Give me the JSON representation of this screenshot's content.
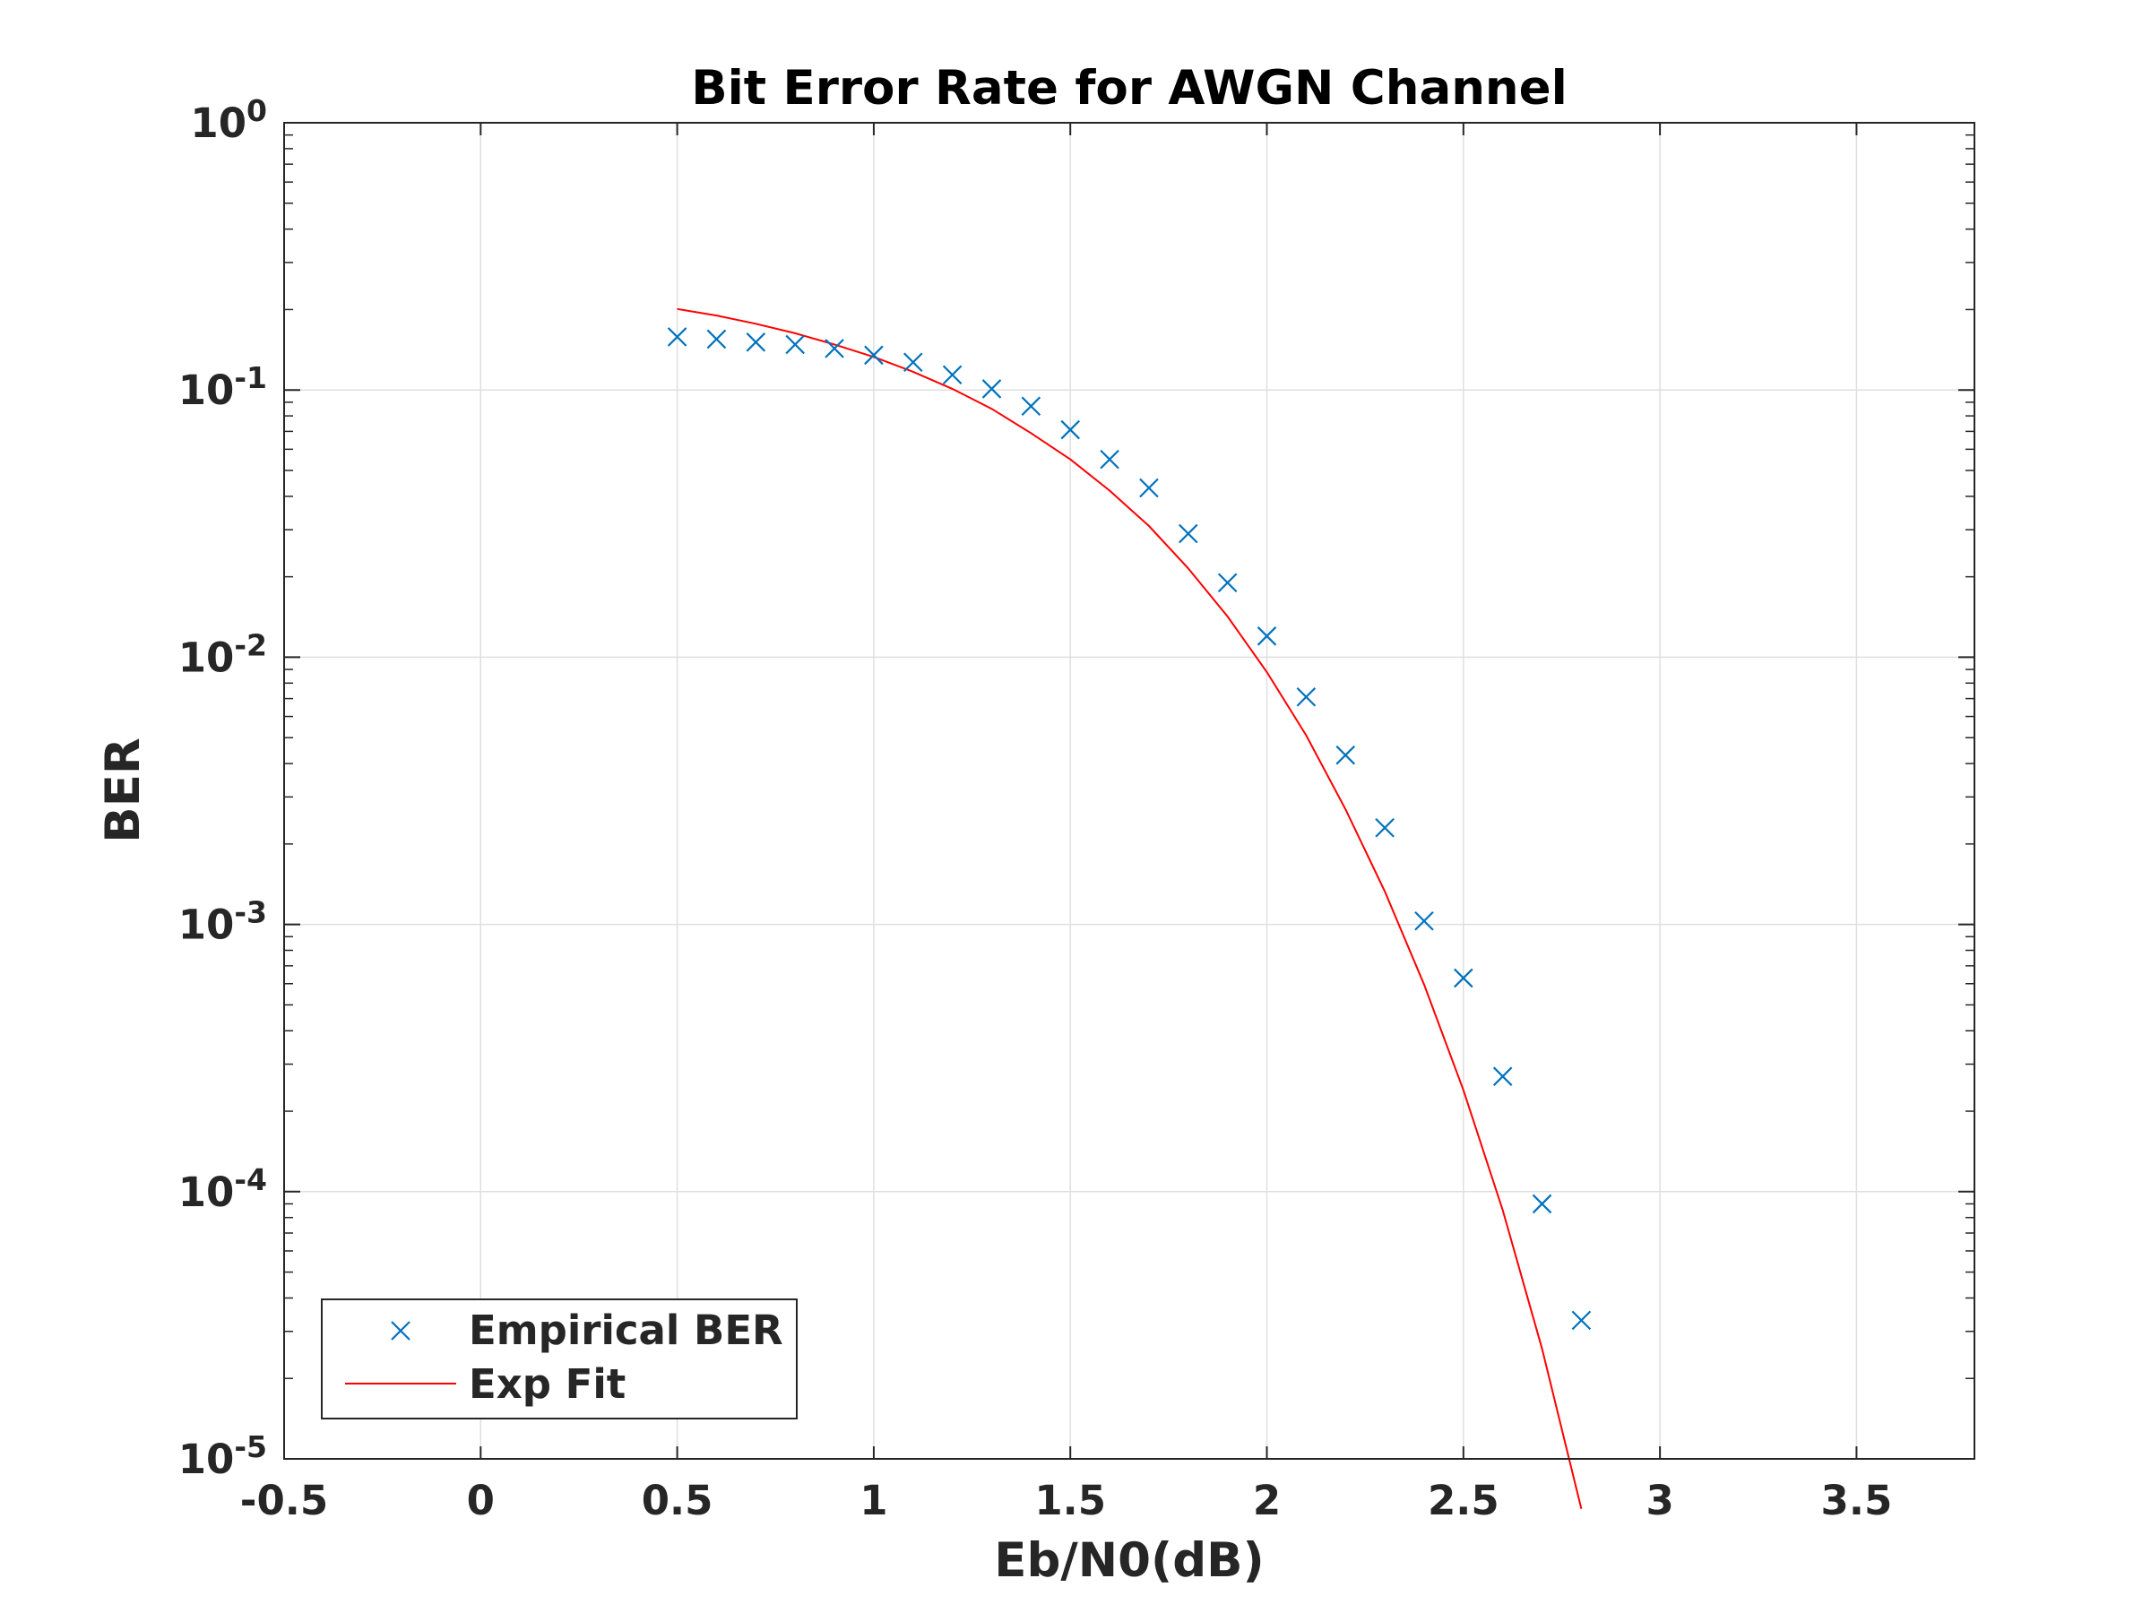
{
  "chart_data": {
    "type": "scatter",
    "title": "Bit Error Rate for AWGN Channel",
    "xlabel": "Eb/N0(dB)",
    "ylabel": "BER",
    "xlim": [
      -0.5,
      3.8
    ],
    "ylim": [
      1e-05,
      1
    ],
    "yscale": "log",
    "grid": true,
    "legend_position": "bottom-left",
    "x_ticks": [
      -0.5,
      0,
      0.5,
      1,
      1.5,
      2,
      2.5,
      3,
      3.5
    ],
    "x_tick_labels": [
      "-0.5",
      "0",
      "0.5",
      "1",
      "1.5",
      "2",
      "2.5",
      "3",
      "3.5"
    ],
    "y_ticks": [
      {
        "value": 1,
        "base": "10",
        "exp": "0"
      },
      {
        "value": 0.1,
        "base": "10",
        "exp": "-1"
      },
      {
        "value": 0.01,
        "base": "10",
        "exp": "-2"
      },
      {
        "value": 0.001,
        "base": "10",
        "exp": "-3"
      },
      {
        "value": 0.0001,
        "base": "10",
        "exp": "-4"
      },
      {
        "value": 1e-05,
        "base": "10",
        "exp": "-5"
      }
    ],
    "series": [
      {
        "name": "Empirical BER",
        "marker": "x",
        "color": "#0072BD",
        "x": [
          0.5,
          0.6,
          0.7,
          0.8,
          0.9,
          1.0,
          1.1,
          1.2,
          1.3,
          1.4,
          1.5,
          1.6,
          1.7,
          1.8,
          1.9,
          2.0,
          2.1,
          2.2,
          2.3,
          2.4,
          2.5,
          2.6,
          2.7,
          2.8
        ],
        "y": [
          0.158,
          0.155,
          0.151,
          0.148,
          0.143,
          0.135,
          0.127,
          0.114,
          0.101,
          0.087,
          0.071,
          0.055,
          0.043,
          0.029,
          0.019,
          0.012,
          0.0071,
          0.0043,
          0.0023,
          0.00103,
          0.00063,
          0.00027,
          9e-05,
          3.3e-05
        ]
      },
      {
        "name": "Exp Fit",
        "line": "solid",
        "color": "#FF0000",
        "x": [
          0.5,
          0.6,
          0.7,
          0.8,
          0.9,
          1.0,
          1.1,
          1.2,
          1.3,
          1.4,
          1.5,
          1.6,
          1.7,
          1.8,
          1.9,
          2.0,
          2.1,
          2.2,
          2.3,
          2.4,
          2.5,
          2.6,
          2.7,
          2.8
        ],
        "y": [
          0.201,
          0.19,
          0.177,
          0.163,
          0.148,
          0.133,
          0.117,
          0.101,
          0.085,
          0.069,
          0.055,
          0.042,
          0.031,
          0.0215,
          0.0142,
          0.0088,
          0.0051,
          0.0027,
          0.00133,
          0.000595,
          0.00024,
          8.52e-05,
          2.59e-05,
          6.5e-06
        ]
      }
    ]
  }
}
